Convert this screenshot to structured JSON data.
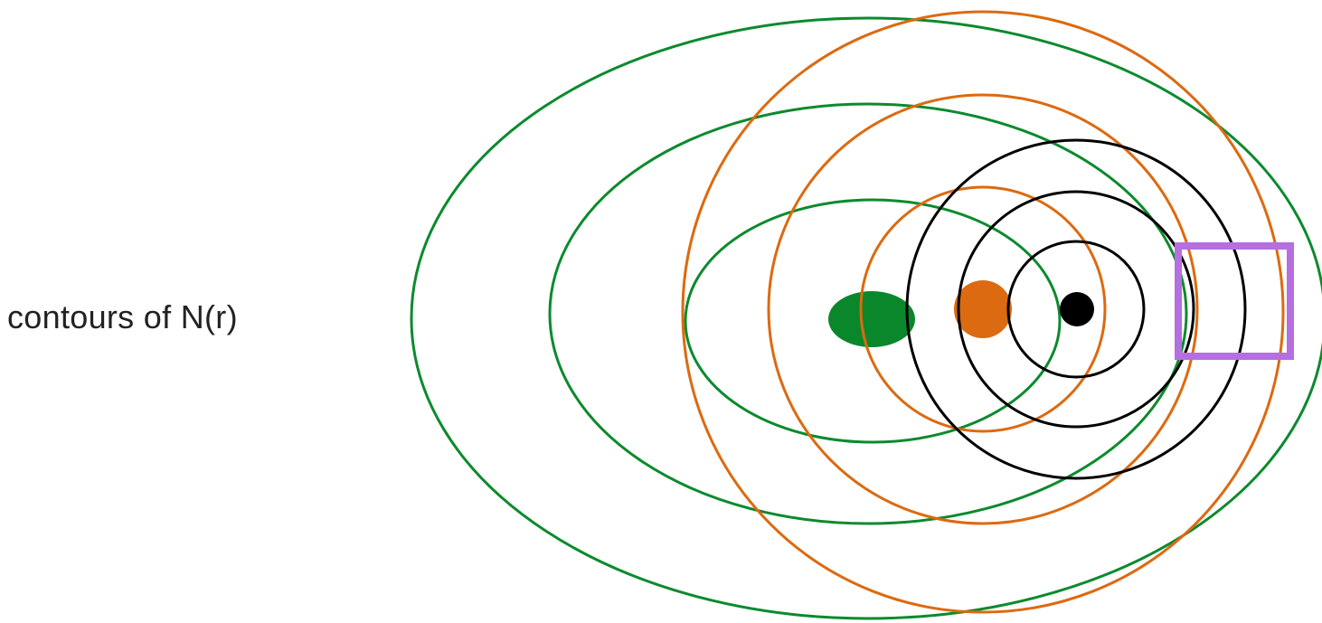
{
  "caption": "contours of N(r)",
  "colors": {
    "green": "#0c8a2e",
    "green_fill": "#0a872a",
    "orange": "#dc6a10",
    "black": "#000000",
    "purple": "#b56fe0"
  },
  "groups": [
    {
      "name": "green",
      "contours": 3,
      "center_marker": "ellipse"
    },
    {
      "name": "orange",
      "contours": 3,
      "center_marker": "circle"
    },
    {
      "name": "black",
      "contours": 3,
      "center_marker": "circle"
    }
  ],
  "highlight": {
    "shape": "square",
    "color": "purple"
  }
}
